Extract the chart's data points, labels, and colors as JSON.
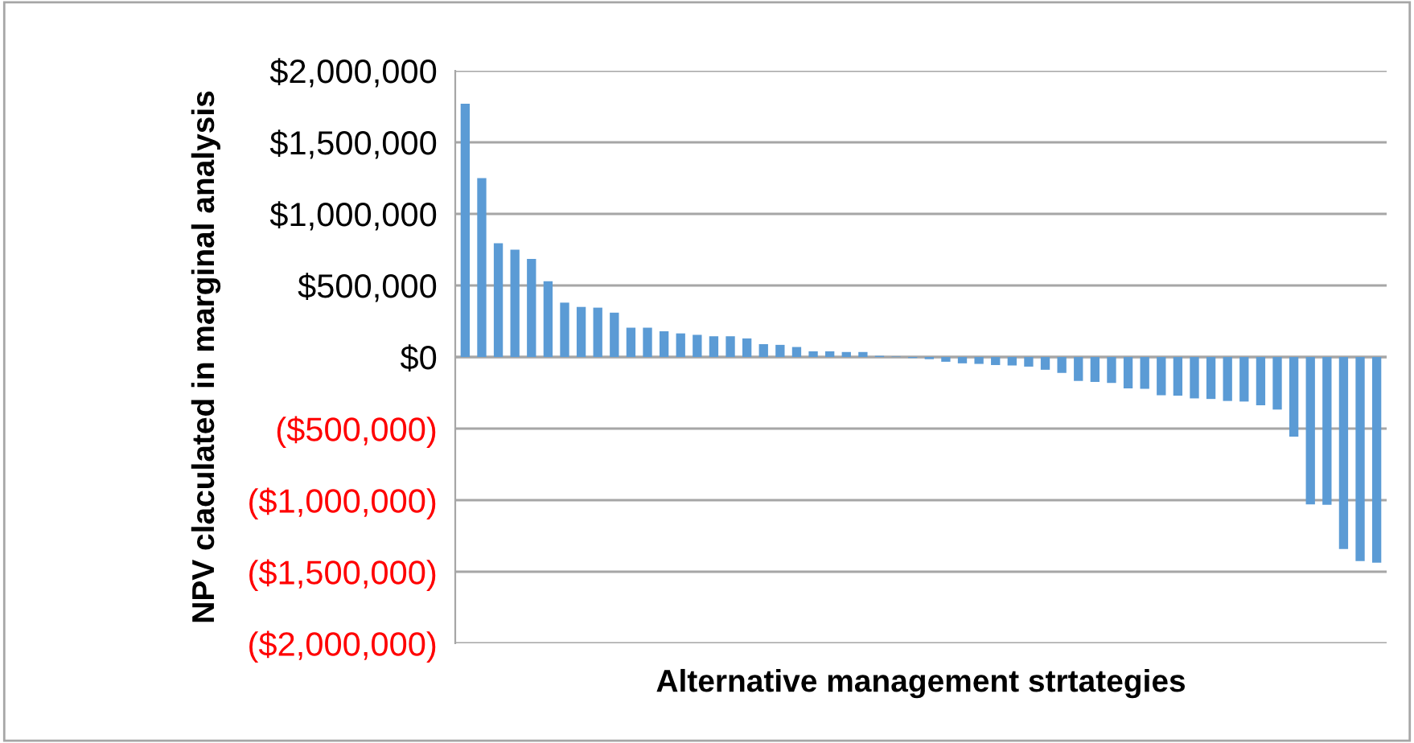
{
  "chart_data": {
    "type": "bar",
    "xlabel": "Alternative management strtategies",
    "ylabel": "NPV claculated in marginal analysis",
    "categories": [
      null,
      null,
      null,
      null,
      null,
      null,
      null,
      null,
      null,
      null,
      null,
      null,
      null,
      null,
      null,
      null,
      null,
      null,
      null,
      null,
      null,
      null,
      null,
      null,
      null,
      null,
      null,
      null,
      null,
      null,
      null,
      null,
      null,
      null,
      null,
      null,
      null,
      null,
      null,
      null,
      null,
      null,
      null,
      null,
      null,
      null,
      null,
      null,
      null,
      null,
      null,
      null,
      null,
      null,
      null,
      null
    ],
    "values": [
      1770000,
      1250000,
      795000,
      750000,
      685000,
      530000,
      380000,
      350000,
      345000,
      310000,
      205000,
      205000,
      180000,
      165000,
      155000,
      145000,
      145000,
      130000,
      90000,
      85000,
      70000,
      40000,
      40000,
      35000,
      35000,
      8000,
      3000,
      -7000,
      -15000,
      -33000,
      -44000,
      -48000,
      -56000,
      -59000,
      -67000,
      -89000,
      -111000,
      -167000,
      -174000,
      -181000,
      -219000,
      -222000,
      -267000,
      -270000,
      -289000,
      -293000,
      -307000,
      -311000,
      -337000,
      -367000,
      -556000,
      -1030000,
      -1033000,
      -1341000,
      -1426000,
      -1437000
    ],
    "color": "#5b9bd5",
    "ylim": [
      -2000000,
      2000000
    ],
    "yticks": [
      {
        "value": -2000000,
        "label": "($2,000,000)"
      },
      {
        "value": -1500000,
        "label": "($1,500,000)"
      },
      {
        "value": -1000000,
        "label": "($1,000,000)"
      },
      {
        "value": -500000,
        "label": "($500,000)"
      },
      {
        "value": 0,
        "label": "$0"
      },
      {
        "value": 500000,
        "label": "$500,000"
      },
      {
        "value": 1000000,
        "label": "$1,000,000"
      },
      {
        "value": 1500000,
        "label": "$1,500,000"
      },
      {
        "value": 2000000,
        "label": "$2,000,000"
      }
    ],
    "grid": "y",
    "legend": false
  }
}
